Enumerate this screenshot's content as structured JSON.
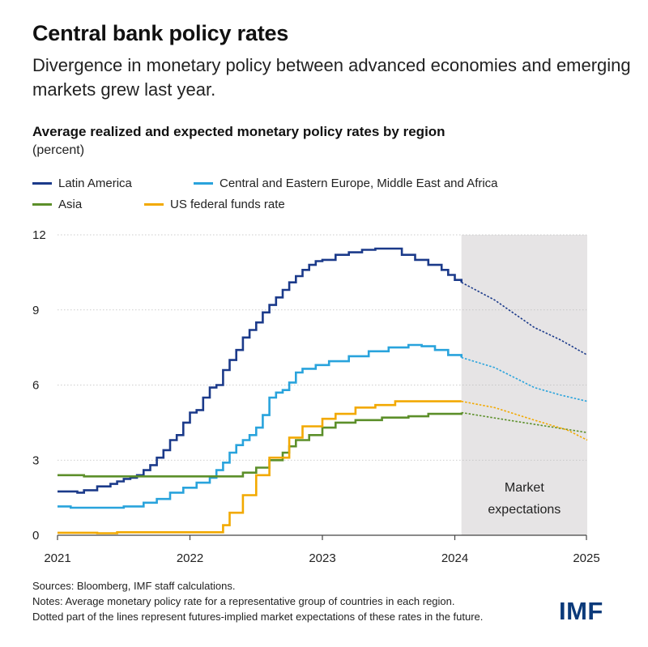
{
  "header": {
    "title": "Central bank policy rates",
    "subtitle": "Divergence in monetary policy between advanced economies and emerging markets grew last year."
  },
  "chart_data": {
    "type": "line",
    "title": "Average realized and expected monetary policy rates by region",
    "unit": "(percent)",
    "xlabel": "",
    "ylabel": "",
    "xlim": [
      2021,
      2025
    ],
    "ylim": [
      0,
      12
    ],
    "x_ticks": [
      "2021",
      "2022",
      "2023",
      "2024",
      "2025"
    ],
    "y_ticks": [
      "0",
      "3",
      "6",
      "9",
      "12"
    ],
    "forecast_start": 2024.05,
    "shaded_region": {
      "label_line1": "Market",
      "label_line2": "expectations",
      "from": 2024.05,
      "to": 2025.05
    },
    "legend_position": "top-left",
    "series": [
      {
        "name": "Latin America",
        "color": "#1b3a8a",
        "points": [
          [
            2021.0,
            1.75
          ],
          [
            2021.1,
            1.75
          ],
          [
            2021.15,
            1.7
          ],
          [
            2021.2,
            1.8
          ],
          [
            2021.3,
            1.95
          ],
          [
            2021.4,
            2.05
          ],
          [
            2021.45,
            2.15
          ],
          [
            2021.5,
            2.25
          ],
          [
            2021.55,
            2.3
          ],
          [
            2021.6,
            2.4
          ],
          [
            2021.65,
            2.6
          ],
          [
            2021.7,
            2.8
          ],
          [
            2021.75,
            3.1
          ],
          [
            2021.8,
            3.4
          ],
          [
            2021.85,
            3.8
          ],
          [
            2021.9,
            4.0
          ],
          [
            2021.95,
            4.5
          ],
          [
            2022.0,
            4.9
          ],
          [
            2022.05,
            5.0
          ],
          [
            2022.1,
            5.5
          ],
          [
            2022.15,
            5.9
          ],
          [
            2022.2,
            6.0
          ],
          [
            2022.25,
            6.6
          ],
          [
            2022.3,
            7.0
          ],
          [
            2022.35,
            7.4
          ],
          [
            2022.4,
            7.9
          ],
          [
            2022.45,
            8.2
          ],
          [
            2022.5,
            8.5
          ],
          [
            2022.55,
            8.9
          ],
          [
            2022.6,
            9.2
          ],
          [
            2022.65,
            9.5
          ],
          [
            2022.7,
            9.8
          ],
          [
            2022.75,
            10.1
          ],
          [
            2022.8,
            10.35
          ],
          [
            2022.85,
            10.6
          ],
          [
            2022.9,
            10.8
          ],
          [
            2022.95,
            10.95
          ],
          [
            2023.0,
            11.0
          ],
          [
            2023.1,
            11.2
          ],
          [
            2023.2,
            11.3
          ],
          [
            2023.3,
            11.4
          ],
          [
            2023.4,
            11.45
          ],
          [
            2023.55,
            11.45
          ],
          [
            2023.6,
            11.2
          ],
          [
            2023.7,
            11.0
          ],
          [
            2023.8,
            10.8
          ],
          [
            2023.9,
            10.6
          ],
          [
            2023.95,
            10.4
          ],
          [
            2024.0,
            10.2
          ],
          [
            2024.05,
            10.1
          ]
        ],
        "forecast": [
          [
            2024.05,
            10.1
          ],
          [
            2024.3,
            9.4
          ],
          [
            2024.6,
            8.3
          ],
          [
            2024.8,
            7.8
          ],
          [
            2025.05,
            7.2
          ]
        ]
      },
      {
        "name": "Central and Eastern Europe, Middle East and Africa",
        "color": "#29a3dc",
        "points": [
          [
            2021.0,
            1.15
          ],
          [
            2021.1,
            1.1
          ],
          [
            2021.3,
            1.1
          ],
          [
            2021.5,
            1.15
          ],
          [
            2021.65,
            1.3
          ],
          [
            2021.75,
            1.45
          ],
          [
            2021.85,
            1.7
          ],
          [
            2021.95,
            1.9
          ],
          [
            2022.05,
            2.1
          ],
          [
            2022.15,
            2.3
          ],
          [
            2022.2,
            2.6
          ],
          [
            2022.25,
            2.9
          ],
          [
            2022.3,
            3.3
          ],
          [
            2022.35,
            3.6
          ],
          [
            2022.4,
            3.8
          ],
          [
            2022.45,
            4.0
          ],
          [
            2022.5,
            4.3
          ],
          [
            2022.55,
            4.8
          ],
          [
            2022.6,
            5.5
          ],
          [
            2022.65,
            5.7
          ],
          [
            2022.7,
            5.8
          ],
          [
            2022.75,
            6.1
          ],
          [
            2022.8,
            6.5
          ],
          [
            2022.85,
            6.65
          ],
          [
            2022.95,
            6.8
          ],
          [
            2023.05,
            6.95
          ],
          [
            2023.2,
            7.15
          ],
          [
            2023.35,
            7.35
          ],
          [
            2023.5,
            7.5
          ],
          [
            2023.65,
            7.6
          ],
          [
            2023.75,
            7.55
          ],
          [
            2023.85,
            7.4
          ],
          [
            2023.95,
            7.2
          ],
          [
            2024.05,
            7.1
          ]
        ],
        "forecast": [
          [
            2024.05,
            7.1
          ],
          [
            2024.3,
            6.7
          ],
          [
            2024.6,
            5.9
          ],
          [
            2024.8,
            5.6
          ],
          [
            2025.05,
            5.35
          ]
        ]
      },
      {
        "name": "Asia",
        "color": "#5c8f2a",
        "points": [
          [
            2021.0,
            2.4
          ],
          [
            2021.15,
            2.4
          ],
          [
            2021.2,
            2.35
          ],
          [
            2022.3,
            2.35
          ],
          [
            2022.4,
            2.5
          ],
          [
            2022.5,
            2.7
          ],
          [
            2022.6,
            3.0
          ],
          [
            2022.7,
            3.3
          ],
          [
            2022.75,
            3.55
          ],
          [
            2022.8,
            3.8
          ],
          [
            2022.9,
            4.0
          ],
          [
            2023.0,
            4.3
          ],
          [
            2023.1,
            4.5
          ],
          [
            2023.25,
            4.6
          ],
          [
            2023.45,
            4.7
          ],
          [
            2023.65,
            4.75
          ],
          [
            2023.8,
            4.85
          ],
          [
            2024.05,
            4.9
          ]
        ],
        "forecast": [
          [
            2024.05,
            4.9
          ],
          [
            2024.4,
            4.6
          ],
          [
            2024.7,
            4.35
          ],
          [
            2025.05,
            4.1
          ]
        ]
      },
      {
        "name": "US federal funds rate",
        "color": "#f2a900",
        "points": [
          [
            2021.0,
            0.1
          ],
          [
            2021.3,
            0.08
          ],
          [
            2021.45,
            0.12
          ],
          [
            2022.2,
            0.12
          ],
          [
            2022.25,
            0.4
          ],
          [
            2022.3,
            0.9
          ],
          [
            2022.4,
            1.6
          ],
          [
            2022.5,
            2.4
          ],
          [
            2022.6,
            3.1
          ],
          [
            2022.75,
            3.9
          ],
          [
            2022.85,
            4.35
          ],
          [
            2023.0,
            4.65
          ],
          [
            2023.1,
            4.85
          ],
          [
            2023.25,
            5.1
          ],
          [
            2023.4,
            5.2
          ],
          [
            2023.55,
            5.35
          ],
          [
            2024.05,
            5.35
          ]
        ],
        "forecast": [
          [
            2024.05,
            5.35
          ],
          [
            2024.3,
            5.1
          ],
          [
            2024.6,
            4.6
          ],
          [
            2024.85,
            4.2
          ],
          [
            2025.05,
            3.8
          ]
        ]
      }
    ]
  },
  "footer": {
    "sources": "Sources: Bloomberg, IMF staff calculations.",
    "notes_line1": "Notes: Average monetary policy rate for a representative group of countries in each region.",
    "notes_line2": "Dotted part of the lines represent futures-implied market expectations of these rates in the future.",
    "logo": "IMF"
  },
  "colors": {
    "shade": "#e6e4e5",
    "axis": "#444444",
    "grid": "#bdbdbd",
    "logo": "#0b3a7a"
  }
}
